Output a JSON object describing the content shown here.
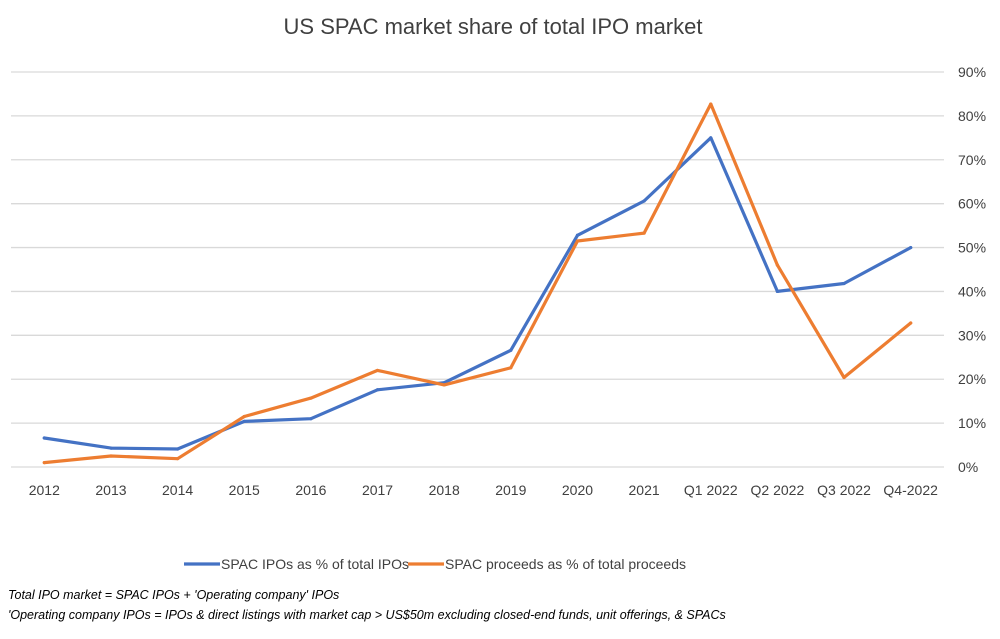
{
  "chart_data": {
    "type": "line",
    "title": "US SPAC market share of total IPO market",
    "xlabel": "",
    "ylabel": "",
    "categories": [
      "2012",
      "2013",
      "2014",
      "2015",
      "2016",
      "2017",
      "2018",
      "2019",
      "2020",
      "2021",
      "Q1 2022",
      "Q2 2022",
      "Q3 2022",
      "Q4-2022"
    ],
    "series": [
      {
        "name": "SPAC IPOs as % of total IPOs",
        "color": "#4472C4",
        "values": [
          6.6,
          4.3,
          4.1,
          10.4,
          11.0,
          17.6,
          19.2,
          26.6,
          52.8,
          60.6,
          75.0,
          40.0,
          41.8,
          50.0
        ]
      },
      {
        "name": "SPAC proceeds as % of total proceeds",
        "color": "#ED7D31",
        "values": [
          1.0,
          2.5,
          1.9,
          11.5,
          15.7,
          22.0,
          18.7,
          22.6,
          51.5,
          53.3,
          82.7,
          46.0,
          20.4,
          32.8
        ]
      }
    ],
    "ylim": [
      0,
      90
    ],
    "yticks": [
      "0%",
      "10%",
      "20%",
      "30%",
      "40%",
      "50%",
      "60%",
      "70%",
      "80%",
      "90%"
    ],
    "y_axis_side": "right",
    "grid": true,
    "legend_position": "bottom"
  },
  "footnotes": [
    "Total IPO market = SPAC IPOs + 'Operating company' IPOs",
    "'Operating company IPOs = IPOs & direct listings with market cap > US$50m excluding closed-end funds, unit offerings, & SPACs"
  ]
}
